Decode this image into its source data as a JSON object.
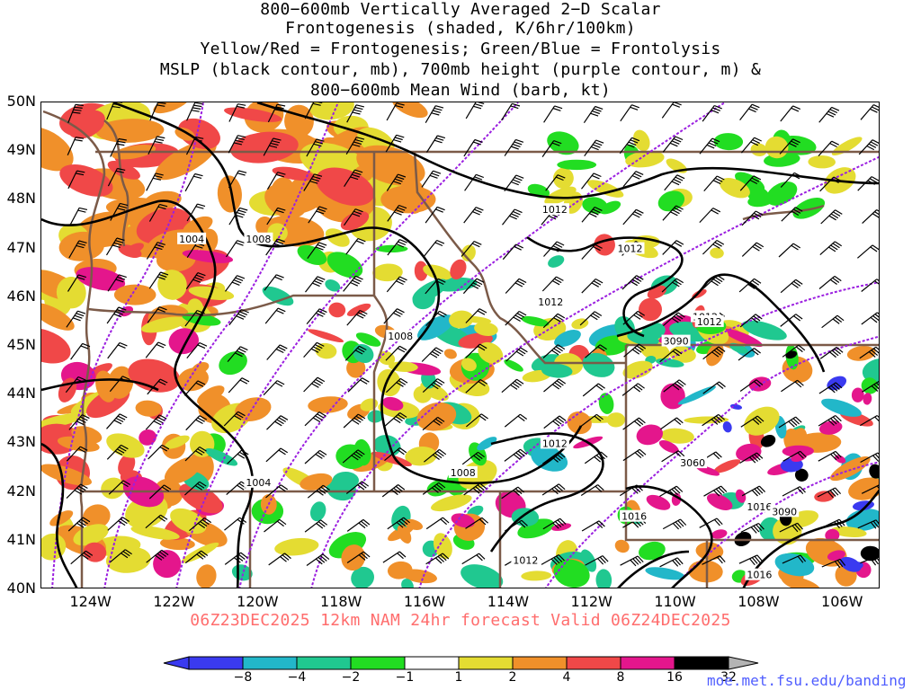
{
  "title_lines": [
    "800−600mb Vertically Averaged 2−D Scalar",
    "Frontogenesis (shaded, K/6hr/100km)",
    "Yellow/Red = Frontogenesis;  Green/Blue = Frontolysis",
    "MSLP (black contour, mb), 700mb height (purple contour, m) &",
    "800−600mb Mean Wind (barb, kt)"
  ],
  "valid_line": "06Z23DEC2025 12km NAM 24hr forecast Valid 06Z24DEC2025",
  "credit": "moe.met.fsu.edu/banding",
  "map": {
    "lat_labels": [
      "50N",
      "49N",
      "48N",
      "47N",
      "46N",
      "45N",
      "44N",
      "43N",
      "42N",
      "41N",
      "40N"
    ],
    "lat_values": [
      50,
      49,
      48,
      47,
      46,
      45,
      44,
      43,
      42,
      41,
      40
    ],
    "lon_labels": [
      "124W",
      "122W",
      "120W",
      "118W",
      "116W",
      "114W",
      "112W",
      "110W",
      "108W",
      "106W"
    ],
    "lon_values": [
      -124,
      -122,
      -120,
      -118,
      -116,
      -114,
      -112,
      -110,
      -108,
      -106
    ],
    "lon_range": [
      -125.2,
      -105.1
    ],
    "lat_range": [
      40,
      50
    ],
    "mslp_labels": [
      {
        "text": "1004",
        "lon": -121.6,
        "lat": 47.2
      },
      {
        "text": "1008",
        "lon": -120.0,
        "lat": 47.2
      },
      {
        "text": "1008",
        "lon": -116.6,
        "lat": 45.2
      },
      {
        "text": "1008",
        "lon": -115.1,
        "lat": 42.4
      },
      {
        "text": "1004",
        "lon": -120.0,
        "lat": 42.2
      },
      {
        "text": "1012",
        "lon": -112.9,
        "lat": 47.8
      },
      {
        "text": "1012",
        "lon": -111.1,
        "lat": 47.0
      },
      {
        "text": "1012",
        "lon": -113.0,
        "lat": 45.9
      },
      {
        "text": "1012",
        "lon": -109.3,
        "lat": 45.6
      },
      {
        "text": "1012",
        "lon": -109.2,
        "lat": 45.5
      },
      {
        "text": "1012",
        "lon": -112.9,
        "lat": 43.0
      },
      {
        "text": "1012",
        "lon": -113.6,
        "lat": 40.6
      },
      {
        "text": "1016",
        "lon": -111.0,
        "lat": 41.5
      },
      {
        "text": "1016",
        "lon": -108.0,
        "lat": 41.7
      },
      {
        "text": "1016",
        "lon": -108.0,
        "lat": 40.3
      }
    ],
    "height_labels": [
      {
        "text": "3060",
        "lon": -109.6,
        "lat": 42.6
      },
      {
        "text": "3090",
        "lon": -107.4,
        "lat": 41.6
      },
      {
        "text": "3090",
        "lon": -110.0,
        "lat": 45.1
      }
    ]
  },
  "colorbar": {
    "labels": [
      "−8",
      "−4",
      "−2",
      "−1",
      "1",
      "2",
      "4",
      "8",
      "16",
      "32"
    ],
    "colors": [
      "#3a3af0",
      "#22b7c9",
      "#20c890",
      "#22dd22",
      "#ffffff",
      "#e4dc32",
      "#f0902a",
      "#f04848",
      "#e4168c",
      "#000000"
    ],
    "end_color": "#b4b4b4"
  }
}
